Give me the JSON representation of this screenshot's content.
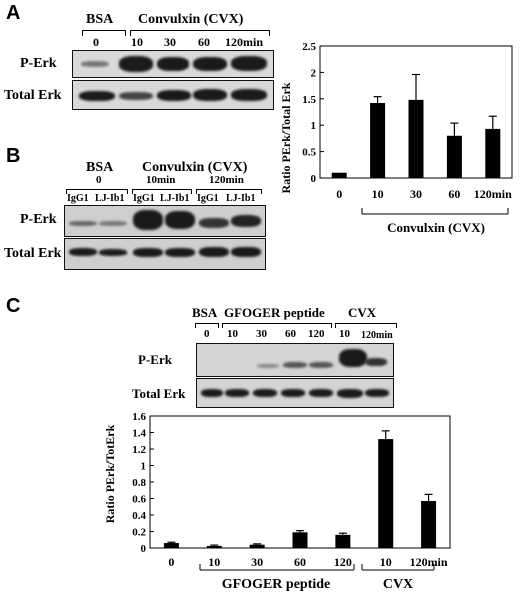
{
  "panels": {
    "a": "A",
    "b": "B",
    "c": "C"
  },
  "blot_a": {
    "group_bsa": "BSA",
    "group_cvx": "Convulxin (CVX)",
    "lanes": [
      "0",
      "10",
      "30",
      "60",
      "120min"
    ],
    "row_perk": "P-Erk",
    "row_total": "Total Erk"
  },
  "blot_b": {
    "group_bsa": "BSA",
    "group_cvx": "Convulxin (CVX)",
    "times": [
      "0",
      "10min",
      "120min"
    ],
    "antibodies": [
      "IgG1",
      "LJ-Ib1",
      "IgG1",
      "LJ-Ib1",
      "IgG1",
      "LJ-Ib1"
    ],
    "row_perk": "P-Erk",
    "row_total": "Total Erk"
  },
  "blot_c": {
    "group_bsa": "BSA",
    "group_gfoger": "GFOGER peptide",
    "group_cvx": "CVX",
    "lanes": [
      "0",
      "10",
      "30",
      "60",
      "120",
      "10",
      "120min"
    ],
    "row_perk": "P-Erk",
    "row_total": "Total Erk"
  },
  "chart_data": [
    {
      "type": "bar",
      "categories": [
        "0",
        "10",
        "30",
        "60",
        "120min"
      ],
      "values": [
        0.1,
        1.42,
        1.48,
        0.8,
        0.93
      ],
      "errors": [
        0,
        0.12,
        0.48,
        0.24,
        0.24
      ],
      "ylabel": "Ratio PErk/Total Erk",
      "group_label": "Convulxin (CVX)",
      "ylim": [
        0,
        2.5
      ],
      "yticks": [
        "0",
        "0.5",
        "1",
        "1.5",
        "2",
        "2.5"
      ],
      "grid": false,
      "bar_color": "#000000"
    },
    {
      "type": "bar",
      "categories": [
        "0",
        "10",
        "30",
        "60",
        "120",
        "10",
        "120min"
      ],
      "values": [
        0.06,
        0.025,
        0.04,
        0.19,
        0.16,
        1.32,
        0.57
      ],
      "errors": [
        0.01,
        0.01,
        0.01,
        0.02,
        0.02,
        0.1,
        0.08
      ],
      "ylabel": "Ratio PErk/TotErk",
      "group_labels": [
        "GFOGER peptide",
        "CVX"
      ],
      "ylim": [
        0,
        1.6
      ],
      "yticks": [
        "0",
        "0.2",
        "0.4",
        "0.6",
        "0.8",
        "1",
        "1.2",
        "1.4",
        "1.6"
      ],
      "grid": false,
      "bar_color": "#000000"
    }
  ]
}
